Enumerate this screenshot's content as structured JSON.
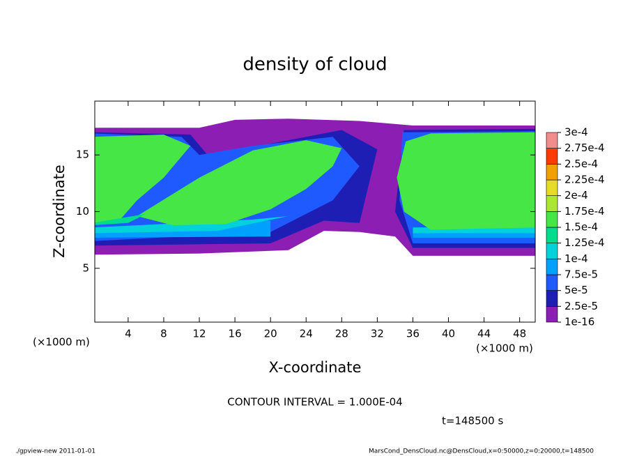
{
  "chart_data": {
    "type": "contour",
    "title": "density of cloud",
    "x_label": "X-coordinate",
    "y_label": "Z-coordinate",
    "x_unit": "(×1000 m)",
    "xlim": [
      0.25,
      49.75
    ],
    "ylim": [
      0.25,
      19.75
    ],
    "xticks": [
      4,
      8,
      12,
      16,
      20,
      24,
      28,
      32,
      36,
      40,
      44,
      48
    ],
    "yticks": [
      5,
      10,
      15
    ],
    "levels": [
      {
        "value": 1e-16,
        "label": "1e-16"
      },
      {
        "value": 2.5e-05,
        "label": "2.5e-5"
      },
      {
        "value": 5e-05,
        "label": "5e-5"
      },
      {
        "value": 7.5e-05,
        "label": "7.5e-5"
      },
      {
        "value": 0.0001,
        "label": "1e-4"
      },
      {
        "value": 0.000125,
        "label": "1.25e-4"
      },
      {
        "value": 0.00015,
        "label": "1.5e-4"
      },
      {
        "value": 0.000175,
        "label": "1.75e-4"
      },
      {
        "value": 0.0002,
        "label": "2e-4"
      },
      {
        "value": 0.000225,
        "label": "2.25e-4"
      },
      {
        "value": 0.00025,
        "label": "2.5e-4"
      },
      {
        "value": 0.000275,
        "label": "2.75e-4"
      },
      {
        "value": 0.0003,
        "label": "3e-4"
      }
    ],
    "colors": [
      "#8c1eb4",
      "#1e1eb4",
      "#1e5aff",
      "#00a0ff",
      "#00d2dc",
      "#00dc8c",
      "#46e646",
      "#aae632",
      "#e6dc28",
      "#f0a000",
      "#ff3c00",
      "#f08c8c"
    ],
    "contour_interval": "CONTOUR INTERVAL = 1.000E-04",
    "time_label": "t=148500 s",
    "footer_left": "./gpview-new  2011-01-01",
    "footer_right": "MarsCond_DensCloud.nc@DensCloud,x=0:50000,z=0:20000,t=148500"
  }
}
